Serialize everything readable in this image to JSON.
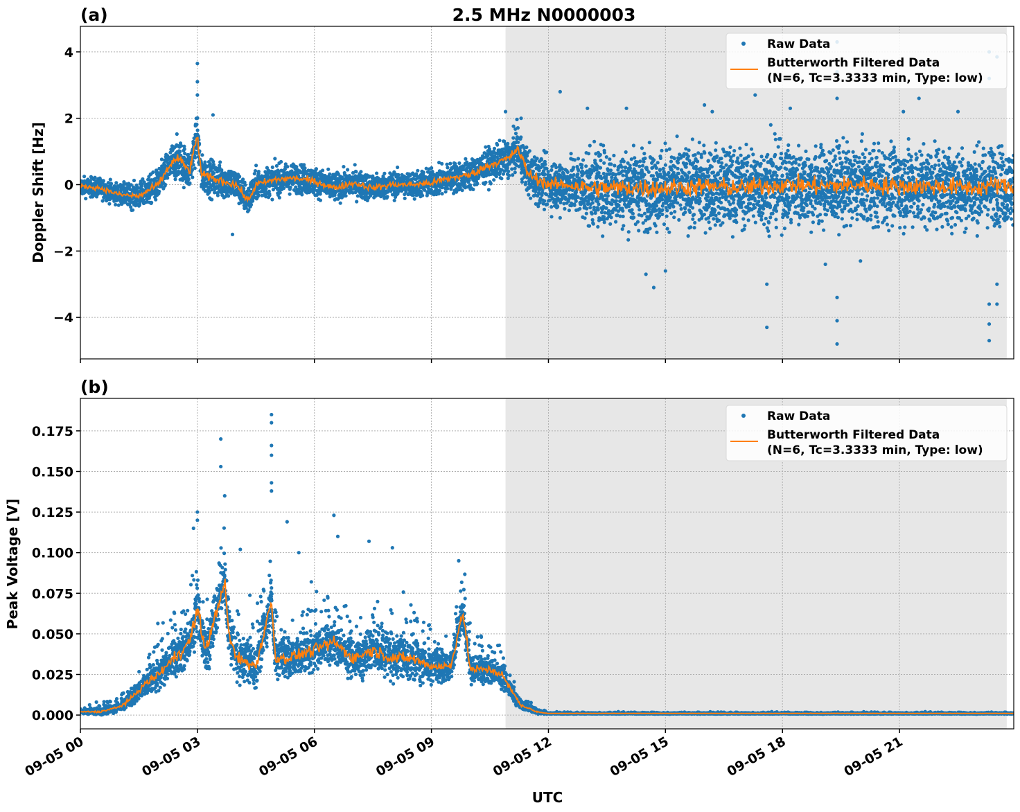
{
  "chart_data": [
    {
      "type": "scatter",
      "panel_label": "(a)",
      "title": "2.5 MHz N0000003",
      "xlabel": "",
      "ylabel": "Doppler Shift [Hz]",
      "xlim_hours": [
        0,
        23.93
      ],
      "ylim": [
        -5.25,
        4.77
      ],
      "yticks": [
        -4,
        -2,
        0,
        2,
        4
      ],
      "ytick_labels": [
        "−4",
        "−2",
        "0",
        "2",
        "4"
      ],
      "grid": true,
      "shaded_region_hours": [
        10.9,
        23.75
      ],
      "legend": {
        "placement": "top-right",
        "entries": [
          "Raw Data",
          "Butterworth Filtered Data",
          "(N=6, Tc=3.3333 min, Type: low)"
        ]
      },
      "series": [
        {
          "name": "Raw Data",
          "color": "#1f77b4",
          "spread_hours": [
            0,
            1,
            2,
            2.5,
            4,
            6,
            8,
            10,
            11,
            11.5,
            12.5,
            13,
            24
          ],
          "spread_halfwidth": [
            0.35,
            0.4,
            0.6,
            0.8,
            0.6,
            0.55,
            0.5,
            0.6,
            0.7,
            0.9,
            1.0,
            1.5,
            1.5
          ],
          "outliers": [
            [
              3.0,
              3.65
            ],
            [
              3.0,
              3.1
            ],
            [
              3.0,
              2.7
            ],
            [
              3.4,
              2.1
            ],
            [
              3.9,
              -1.5
            ],
            [
              10.9,
              2.2
            ],
            [
              11.3,
              2.0
            ],
            [
              12.3,
              2.8
            ],
            [
              12.3,
              -1.0
            ],
            [
              13.0,
              2.3
            ],
            [
              14.0,
              2.3
            ],
            [
              14.5,
              -2.7
            ],
            [
              14.7,
              -3.1
            ],
            [
              15.0,
              -2.6
            ],
            [
              16.0,
              2.4
            ],
            [
              16.2,
              2.2
            ],
            [
              17.3,
              2.7
            ],
            [
              17.6,
              -4.3
            ],
            [
              17.6,
              -3.0
            ],
            [
              17.7,
              1.8
            ],
            [
              18.2,
              2.3
            ],
            [
              19.1,
              -2.4
            ],
            [
              19.4,
              -4.8
            ],
            [
              19.4,
              -4.1
            ],
            [
              19.4,
              -3.4
            ],
            [
              19.4,
              4.3
            ],
            [
              19.4,
              3.4
            ],
            [
              19.4,
              2.6
            ],
            [
              20.0,
              -2.3
            ],
            [
              21.1,
              2.2
            ],
            [
              21.5,
              2.6
            ],
            [
              22.5,
              2.2
            ],
            [
              23.3,
              -4.7
            ],
            [
              23.3,
              -4.2
            ],
            [
              23.3,
              -3.6
            ],
            [
              23.3,
              4.0
            ],
            [
              23.3,
              3.2
            ],
            [
              23.5,
              3.85
            ],
            [
              23.5,
              -3.0
            ],
            [
              23.5,
              -3.6
            ]
          ]
        },
        {
          "name": "Butterworth Filtered Data",
          "color": "#ff7f0e",
          "hours": [
            0,
            0.5,
            1,
            1.5,
            2,
            2.3,
            2.5,
            2.8,
            3.0,
            3.1,
            3.5,
            4.0,
            4.3,
            4.5,
            5,
            5.5,
            6,
            6.5,
            7,
            7.5,
            8,
            8.5,
            9,
            9.5,
            10,
            10.5,
            11,
            11.2,
            11.5,
            12,
            12.5,
            13,
            14,
            15,
            16,
            17,
            18,
            19,
            20,
            21,
            22,
            23,
            23.5,
            23.93
          ],
          "values": [
            -0.05,
            -0.1,
            -0.3,
            -0.35,
            0.0,
            0.6,
            0.8,
            0.4,
            1.5,
            0.3,
            0.15,
            0.0,
            -0.5,
            0.0,
            0.15,
            0.2,
            0.1,
            -0.1,
            0.05,
            -0.1,
            0.0,
            0.0,
            0.05,
            0.2,
            0.3,
            0.6,
            0.8,
            1.1,
            0.3,
            0.0,
            0.0,
            -0.1,
            -0.1,
            -0.1,
            -0.05,
            -0.1,
            0.0,
            -0.05,
            0.0,
            -0.05,
            -0.05,
            -0.1,
            0.0,
            -0.1
          ]
        }
      ]
    },
    {
      "type": "scatter",
      "panel_label": "(b)",
      "xlabel": "UTC",
      "ylabel": "Peak Voltage [V]",
      "xlim_hours": [
        0,
        23.93
      ],
      "ylim": [
        -0.0085,
        0.195
      ],
      "yticks": [
        0,
        0.025,
        0.05,
        0.075,
        0.1,
        0.125,
        0.15,
        0.175
      ],
      "ytick_labels": [
        "0.000",
        "0.025",
        "0.050",
        "0.075",
        "0.100",
        "0.125",
        "0.150",
        "0.175"
      ],
      "xticks_hours": [
        0,
        3,
        6,
        9,
        12,
        15,
        18,
        21
      ],
      "xtick_labels": [
        "09-05 00",
        "09-05 03",
        "09-05 06",
        "09-05 09",
        "09-05 12",
        "09-05 15",
        "09-05 18",
        "09-05 21"
      ],
      "grid": true,
      "shaded_region_hours": [
        10.9,
        23.75
      ],
      "legend": {
        "placement": "top-right",
        "entries": [
          "Raw Data",
          "Butterworth Filtered Data",
          "(N=6, Tc=3.3333 min, Type: low)"
        ]
      },
      "series": [
        {
          "name": "Raw Data",
          "color": "#1f77b4",
          "spread_hours": [
            0,
            1,
            1.5,
            2,
            2.5,
            3,
            4,
            6,
            8,
            10,
            10.8,
            11.3,
            12,
            24
          ],
          "spread_halfwidth": [
            0.002,
            0.004,
            0.01,
            0.015,
            0.02,
            0.025,
            0.02,
            0.02,
            0.02,
            0.015,
            0.012,
            0.004,
            0.0005,
            0.0005
          ],
          "outliers": [
            [
              3.0,
              0.125
            ],
            [
              3.0,
              0.12
            ],
            [
              3.6,
              0.17
            ],
            [
              3.6,
              0.153
            ],
            [
              3.7,
              0.135
            ],
            [
              4.9,
              0.185
            ],
            [
              4.9,
              0.18
            ],
            [
              4.9,
              0.166
            ],
            [
              4.9,
              0.16
            ],
            [
              4.9,
              0.143
            ],
            [
              4.9,
              0.138
            ],
            [
              5.3,
              0.119
            ],
            [
              6.5,
              0.123
            ],
            [
              6.6,
              0.11
            ],
            [
              7.4,
              0.107
            ],
            [
              8.0,
              0.103
            ],
            [
              9.7,
              0.095
            ],
            [
              4.1,
              0.102
            ],
            [
              5.6,
              0.1
            ],
            [
              2.9,
              0.115
            ]
          ]
        },
        {
          "name": "Butterworth Filtered Data",
          "color": "#ff7f0e",
          "hours": [
            0,
            0.5,
            1,
            1.3,
            1.6,
            2,
            2.4,
            2.8,
            3.0,
            3.2,
            3.4,
            3.7,
            3.8,
            4.0,
            4.5,
            4.9,
            5.0,
            5.3,
            6,
            6.5,
            7,
            7.5,
            8,
            8.5,
            9,
            9.5,
            9.8,
            10,
            10.5,
            10.8,
            11,
            11.3,
            11.7,
            12,
            13,
            24
          ],
          "values": [
            0.002,
            0.002,
            0.005,
            0.01,
            0.018,
            0.025,
            0.035,
            0.045,
            0.065,
            0.04,
            0.055,
            0.083,
            0.05,
            0.035,
            0.03,
            0.07,
            0.035,
            0.035,
            0.04,
            0.045,
            0.035,
            0.04,
            0.035,
            0.035,
            0.03,
            0.03,
            0.064,
            0.028,
            0.028,
            0.025,
            0.017,
            0.006,
            0.002,
            0.001,
            0.001,
            0.001
          ]
        }
      ]
    }
  ]
}
